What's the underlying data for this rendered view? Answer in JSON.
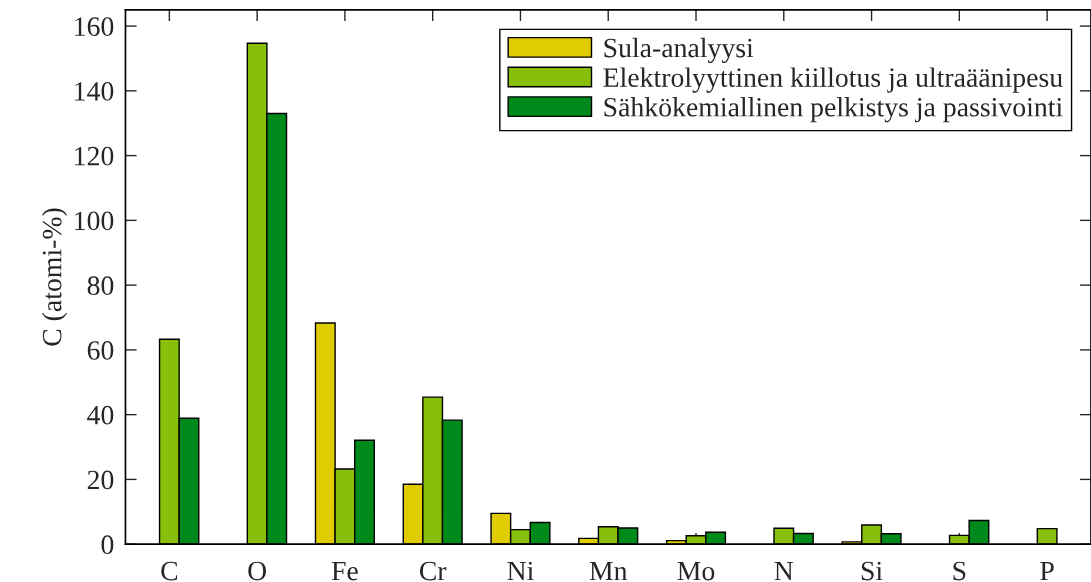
{
  "chart_data": {
    "type": "bar",
    "ylabel": "C (atomi-%)",
    "categories": [
      "C",
      "O",
      "Fe",
      "Cr",
      "Ni",
      "Mn",
      "Mo",
      "N",
      "Si",
      "S",
      "P"
    ],
    "series": [
      {
        "name": "Sula-analyysi",
        "color": "#e0cc00",
        "values": [
          null,
          null,
          68.3,
          18.5,
          9.5,
          1.8,
          1.1,
          null,
          0.7,
          null,
          null
        ]
      },
      {
        "name": "Elektrolyyttinen kiillotus ja ultraäänipesu",
        "color": "#88bf0a",
        "values": [
          63.3,
          154.7,
          23.2,
          45.4,
          4.5,
          5.4,
          2.6,
          4.9,
          5.9,
          2.7,
          4.8
        ]
      },
      {
        "name": "Sähkökemiallinen pelkistys ja passivointi",
        "color": "#008a1c",
        "values": [
          38.9,
          133,
          32.1,
          38.3,
          6.7,
          5.0,
          3.7,
          3.3,
          3.2,
          7.3,
          null
        ]
      }
    ],
    "ylim": [
      0,
      165
    ],
    "yticks": [
      0,
      20,
      40,
      60,
      80,
      100,
      120,
      140,
      160
    ],
    "grid": false,
    "legend": "top right"
  }
}
